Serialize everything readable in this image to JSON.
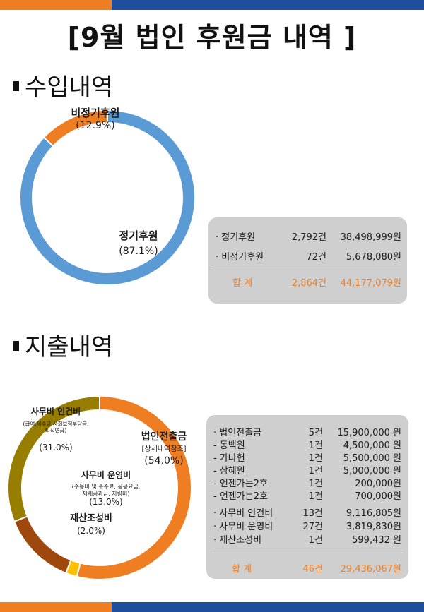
{
  "title": "[9월 법인 후원금 내역 ]",
  "colors": {
    "orange": "#ef7d22",
    "blue": "#5b9bd5",
    "olive": "#977e00",
    "brown": "#9e480e",
    "yellow": "#ffc000",
    "navy": "#1f4e9c"
  },
  "income": {
    "heading": "수입내역",
    "chart_data": {
      "type": "pie",
      "slices": [
        {
          "name": "정기후원",
          "percent_label": "(87.1%)",
          "value": 87.1,
          "color": "#5b9bd5"
        },
        {
          "name": "비정기후원",
          "percent_label": "(12.9%)",
          "value": 12.9,
          "color": "#ef7d22"
        }
      ]
    },
    "rows": [
      {
        "label": "· 정기후원",
        "count": "2,792건",
        "amount": "38,498,999원"
      },
      {
        "label": "· 비정기후원",
        "count": "72건",
        "amount": "5,678,080원"
      }
    ],
    "total": {
      "label": "합   계",
      "count": "2,864건",
      "amount": "44,177,079원"
    }
  },
  "expense": {
    "heading": "지출내역",
    "chart_data": {
      "type": "pie",
      "slices": [
        {
          "name": "법인전출금",
          "sub": "[상세내역참조]",
          "percent_label": "(54.0%)",
          "value": 54.0,
          "color": "#ef7d22"
        },
        {
          "name": "재산조성비",
          "sub": "",
          "percent_label": "(2.0%)",
          "value": 2.0,
          "color": "#ffc000"
        },
        {
          "name": "사무비 운영비",
          "sub": "(수용비 및 수수료, 공공요금, 제세공과금, 차량비)",
          "percent_label": "(13.0%)",
          "value": 13.0,
          "color": "#9e480e"
        },
        {
          "name": "사무비 인건비",
          "sub": "(급여,제수당,사회보험부담금, 퇴직연금)",
          "percent_label": "(31.0%)",
          "value": 31.0,
          "color": "#977e00"
        }
      ]
    },
    "rows_main": [
      {
        "label": "· 법인전출금",
        "count": "5건",
        "amount": "15,900,000 원"
      },
      {
        "label": "-    동백원",
        "count": "1건",
        "amount": "4,500,000 원"
      },
      {
        "label": "-    가나헌",
        "count": "1건",
        "amount": "5,500,000 원"
      },
      {
        "label": "-    삼혜원",
        "count": "1건",
        "amount": "5,000,000 원"
      },
      {
        "label": "-    언젠가는2호",
        "count": "1건",
        "amount": "200,000원"
      },
      {
        "label": "-    언젠가는2호",
        "count": "1건",
        "amount": "700,000원"
      }
    ],
    "rows_other": [
      {
        "label": "· 사무비 인건비",
        "count": "13건",
        "amount": "9,116,805원"
      },
      {
        "label": "· 사무비 운영비",
        "count": "27건",
        "amount": "3,819,830원"
      },
      {
        "label": "· 재산조성비",
        "count": "1건",
        "amount": "599,432 원"
      }
    ],
    "total": {
      "label": "합   계",
      "count": "46건",
      "amount": "29,436,067원"
    }
  }
}
